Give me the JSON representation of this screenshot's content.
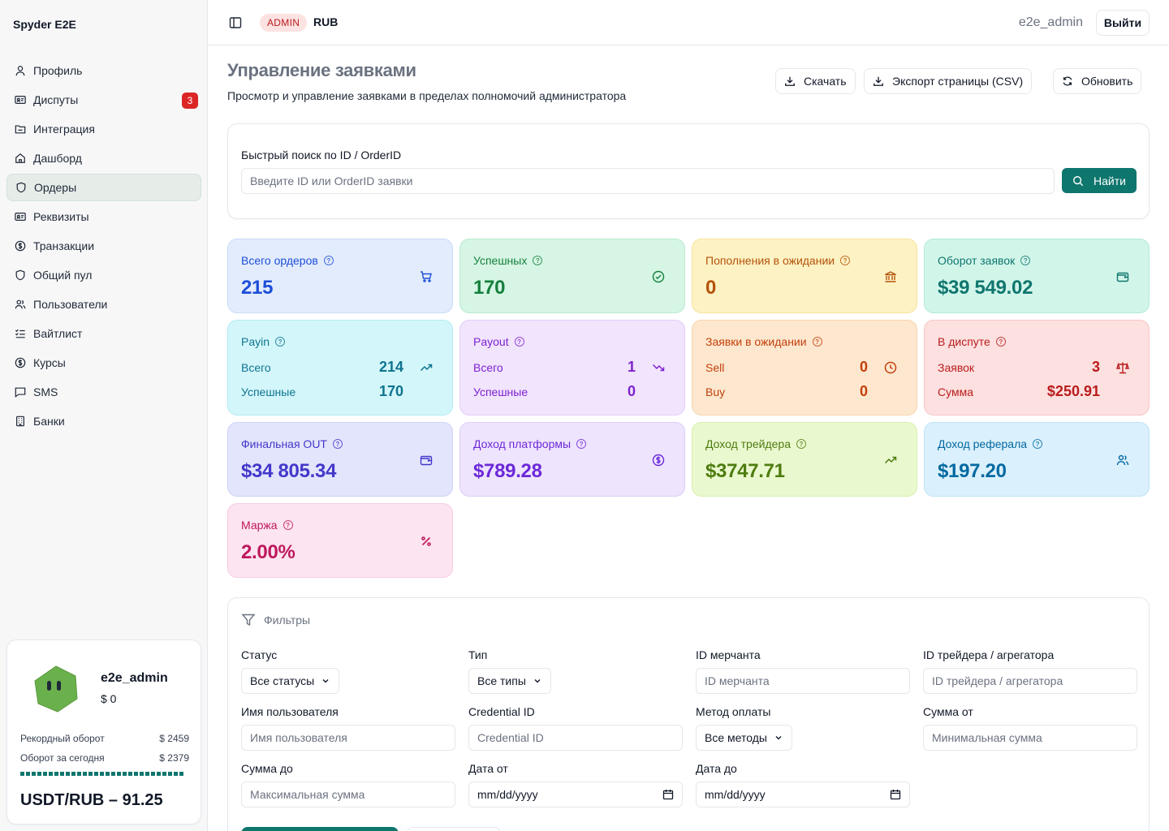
{
  "app": {
    "brand": "Spyder E2E"
  },
  "sidebar": {
    "items": [
      {
        "label": "Профиль",
        "icon": "user-icon"
      },
      {
        "label": "Диспуты",
        "icon": "id-card-icon",
        "badge": "3"
      },
      {
        "label": "Интеграция",
        "icon": "folder-icon"
      },
      {
        "label": "Дашборд",
        "icon": "home-icon"
      },
      {
        "label": "Ордеры",
        "icon": "shield-icon",
        "active": true
      },
      {
        "label": "Реквизиты",
        "icon": "id-card-icon"
      },
      {
        "label": "Транзакции",
        "icon": "dollar-icon"
      },
      {
        "label": "Общий пул",
        "icon": "shield-icon"
      },
      {
        "label": "Пользователи",
        "icon": "users-icon"
      },
      {
        "label": "Вайтлист",
        "icon": "checklist-icon"
      },
      {
        "label": "Курсы",
        "icon": "dollar-icon"
      },
      {
        "label": "SMS",
        "icon": "message-icon"
      },
      {
        "label": "Банки",
        "icon": "building-icon"
      }
    ],
    "user_card": {
      "name": "e2e_admin",
      "balance": "$ 0",
      "record_label": "Рекордный оборот",
      "record_value": "$ 2459",
      "today_label": "Оборот за сегодня",
      "today_value": "$ 2379",
      "today_progress": 0.97,
      "rate": "USDT/RUB – 91.25"
    }
  },
  "header": {
    "role_badge": "ADMIN",
    "currency": "RUB",
    "username": "e2e_admin",
    "logout_label": "Выйти"
  },
  "page": {
    "title": "Управление заявками",
    "subtitle": "Просмотр и управление заявками в пределах полномочий администратора",
    "download_label": "Скачать",
    "export_label": "Экспорт страницы (CSV)",
    "refresh_label": "Обновить"
  },
  "search": {
    "label": "Быстрый поиск по ID / OrderID",
    "placeholder": "Введите ID или OrderID заявки",
    "button_label": "Найти"
  },
  "stats": {
    "total_orders": {
      "title": "Всего ордеров",
      "value": "215"
    },
    "successful": {
      "title": "Успешных",
      "value": "170"
    },
    "pending_deposits": {
      "title": "Пополнения в ожидании",
      "value": "0"
    },
    "turnover": {
      "title": "Оборот заявок",
      "value": "$39 549.02"
    },
    "payin": {
      "title": "Payin",
      "row1_label": "Всего",
      "row1_value": "214",
      "row2_label": "Успешные",
      "row2_value": "170"
    },
    "payout": {
      "title": "Payout",
      "row1_label": "Всего",
      "row1_value": "1",
      "row2_label": "Успешные",
      "row2_value": "0"
    },
    "pending_orders": {
      "title": "Заявки в ожидании",
      "row1_label": "Sell",
      "row1_value": "0",
      "row2_label": "Buy",
      "row2_value": "0"
    },
    "in_dispute": {
      "title": "В диспуте",
      "row1_label": "Заявок",
      "row1_value": "3",
      "row2_label": "Сумма",
      "row2_value": "$250.91"
    },
    "final_out": {
      "title": "Финальная OUT",
      "value": "$34 805.34"
    },
    "platform_income": {
      "title": "Доход платформы",
      "value": "$789.28"
    },
    "trader_income": {
      "title": "Доход трейдера",
      "value": "$3747.71"
    },
    "referral_income": {
      "title": "Доход реферала",
      "value": "$197.20"
    },
    "margin": {
      "title": "Маржа",
      "value": "2.00%"
    }
  },
  "filters": {
    "title": "Фильтры",
    "status_label": "Статус",
    "status_value": "Все статусы",
    "type_label": "Тип",
    "type_value": "Все типы",
    "merchant_label": "ID мерчанта",
    "merchant_placeholder": "ID мерчанта",
    "trader_label": "ID трейдера / агрегатора",
    "trader_placeholder": "ID трейдера / агрегатора",
    "username_label": "Имя пользователя",
    "username_placeholder": "Имя пользователя",
    "credential_label": "Credential ID",
    "credential_placeholder": "Credential ID",
    "method_label": "Метод оплаты",
    "method_value": "Все методы",
    "amount_from_label": "Сумма от",
    "amount_from_placeholder": "Минимальная сумма",
    "amount_to_label": "Сумма до",
    "amount_to_placeholder": "Максимальная сумма",
    "date_from_label": "Дата от",
    "date_from_value": "mm/dd/yyyy",
    "date_to_label": "Дата до",
    "date_to_value": "mm/dd/yyyy"
  },
  "colors": {
    "accent": "#0f766e",
    "badge_red": "#dc2626"
  }
}
